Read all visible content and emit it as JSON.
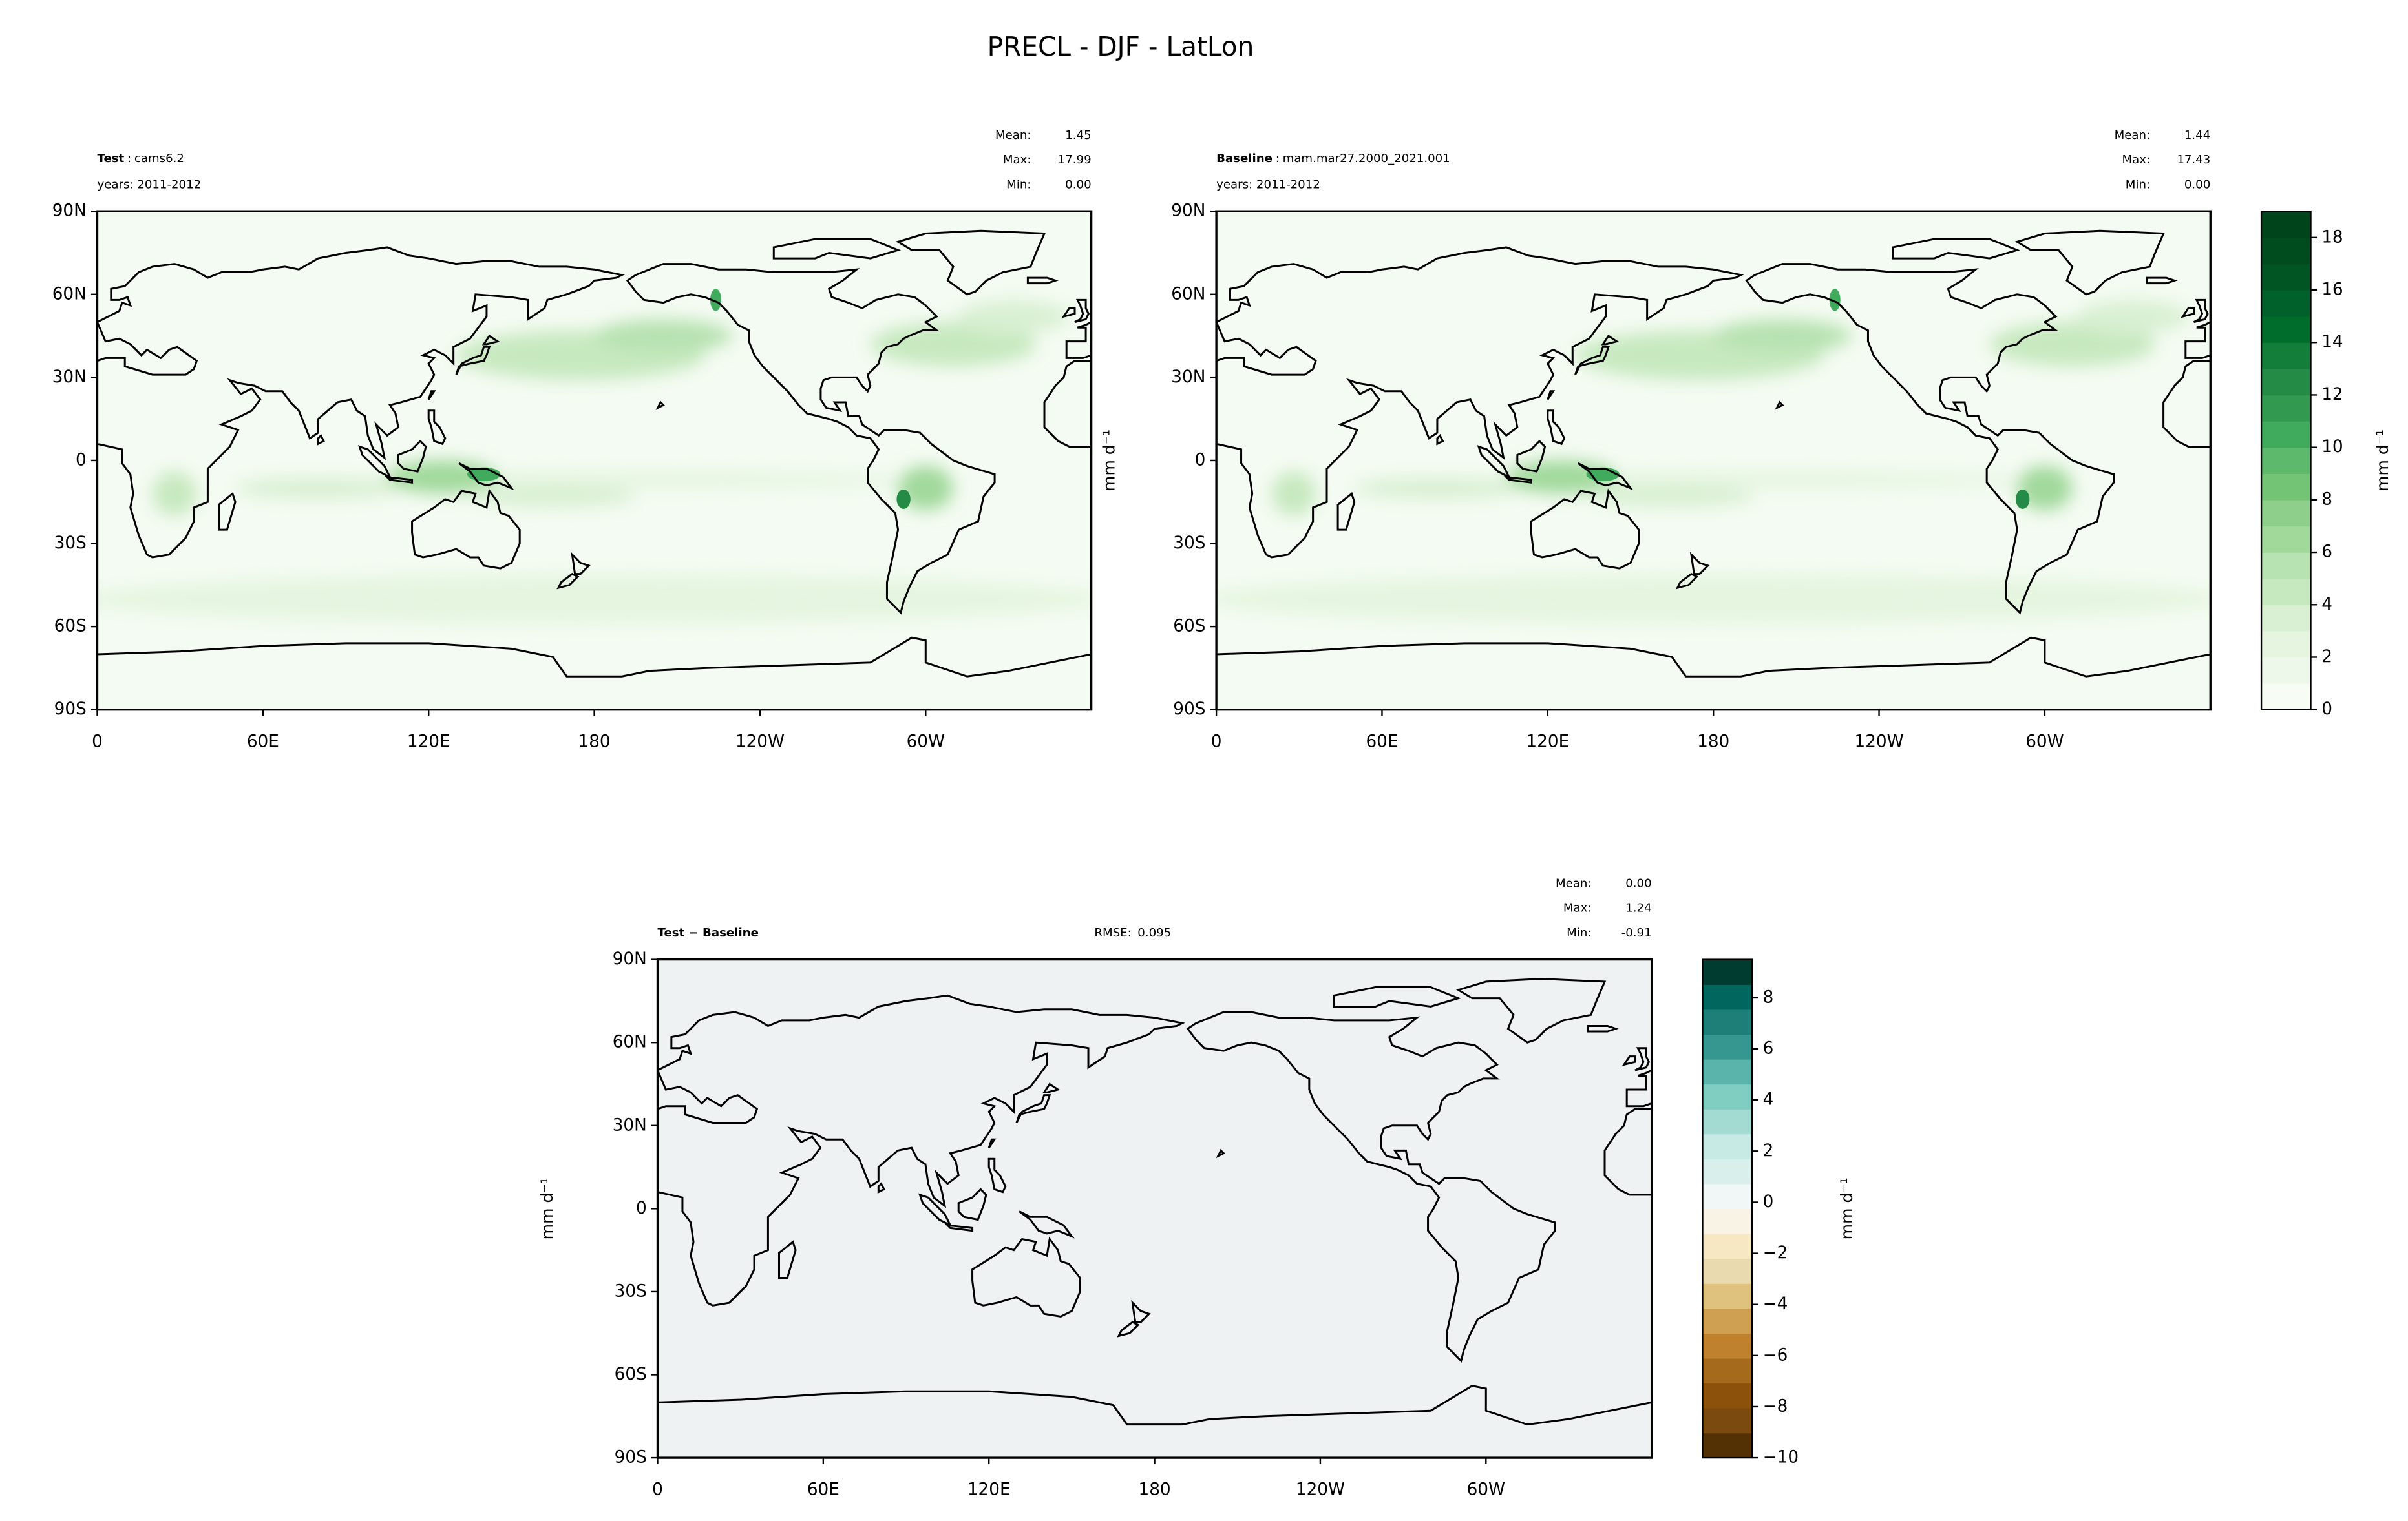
{
  "title": "PRECL - DJF - LatLon",
  "chart_data": [
    {
      "type": "contour",
      "name": "Test",
      "name_separator": ":",
      "case": "cams6.2",
      "years": "years: 2011-2012",
      "stats": {
        "labels": [
          "Mean:",
          "Max:",
          "Min:"
        ],
        "values": [
          1.45,
          17.99,
          0
        ],
        "value_labels": [
          "1.45",
          "17.99",
          "0.00"
        ]
      },
      "xlim": [
        0,
        360
      ],
      "ylim": [
        -90,
        90
      ],
      "xticks": [
        0,
        {
          "value": 60,
          "label": "60E"
        },
        {
          "value": 120,
          "label": "120E"
        },
        180,
        {
          "value": 240,
          "label": "120W"
        },
        {
          "value": 300,
          "label": "60W"
        }
      ],
      "yticks": [
        {
          "value": -90,
          "label": "90S"
        },
        {
          "value": -60,
          "label": "60S"
        },
        {
          "value": -30,
          "label": "30S"
        },
        0,
        {
          "value": 30,
          "label": "30N"
        },
        {
          "value": 60,
          "label": "60N"
        },
        {
          "value": 90,
          "label": "90N"
        }
      ]
    },
    {
      "type": "contour",
      "name": "Baseline",
      "name_separator": ":",
      "case": "mam.mar27.2000_2021.001",
      "years": "years: 2011-2012",
      "stats": {
        "labels": [
          "Mean:",
          "Max:",
          "Min:"
        ],
        "values": [
          1.44,
          17.43,
          0
        ],
        "value_labels": [
          "1.44",
          "17.43",
          "0.00"
        ]
      },
      "ylabel": "mm d⁻¹",
      "xlim": [
        0,
        360
      ],
      "ylim": [
        -90,
        90
      ],
      "xticks": [
        0,
        {
          "value": 60,
          "label": "60E"
        },
        {
          "value": 120,
          "label": "120E"
        },
        180,
        {
          "value": 240,
          "label": "120W"
        },
        {
          "value": 300,
          "label": "60W"
        }
      ],
      "yticks": [
        {
          "value": -90,
          "label": "90S"
        },
        {
          "value": -60,
          "label": "60S"
        },
        {
          "value": -30,
          "label": "30S"
        },
        0,
        {
          "value": 30,
          "label": "30N"
        },
        {
          "value": 60,
          "label": "60N"
        },
        {
          "value": 90,
          "label": "90N"
        }
      ],
      "colorbar": {
        "label": "mm d⁻¹",
        "lim": [
          0,
          19
        ],
        "ticks": [
          0,
          2,
          4,
          6,
          8,
          10,
          12,
          14,
          16,
          18
        ],
        "colors": [
          "#f7fcf5",
          "#eef8ea",
          "#e5f5e0",
          "#d9f0d3",
          "#c7e9c0",
          "#b7e2b1",
          "#a1d99b",
          "#8ed08b",
          "#74c476",
          "#5db96b",
          "#41ab5d",
          "#319a50",
          "#238b45",
          "#137e3a",
          "#006d2c",
          "#00612a",
          "#005522",
          "#004c1f",
          "#00441b"
        ]
      }
    },
    {
      "type": "contour",
      "name": "Test − Baseline",
      "rmse_label": "RMSE:",
      "rmse": 0.095,
      "stats": {
        "labels": [
          "Mean:",
          "Max:",
          "Min:"
        ],
        "values": [
          0,
          1.24,
          -0.91
        ],
        "value_labels": [
          "0.00",
          "1.24",
          "-0.91"
        ]
      },
      "ylabel": "mm d⁻¹",
      "xlim": [
        0,
        360
      ],
      "ylim": [
        -90,
        90
      ],
      "xticks": [
        0,
        {
          "value": 60,
          "label": "60E"
        },
        {
          "value": 120,
          "label": "120E"
        },
        180,
        {
          "value": 240,
          "label": "120W"
        },
        {
          "value": 300,
          "label": "60W"
        }
      ],
      "yticks": [
        {
          "value": -90,
          "label": "90S"
        },
        {
          "value": -60,
          "label": "60S"
        },
        {
          "value": -30,
          "label": "30S"
        },
        0,
        {
          "value": 30,
          "label": "30N"
        },
        {
          "value": 60,
          "label": "60N"
        },
        {
          "value": 90,
          "label": "90N"
        }
      ],
      "colorbar": {
        "label": "mm d⁻¹",
        "lim": [
          -10,
          9.5
        ],
        "ticks": [
          {
            "value": -10,
            "label": "−10"
          },
          {
            "value": -8,
            "label": "−8"
          },
          {
            "value": -6,
            "label": "−6"
          },
          {
            "value": -4,
            "label": "−4"
          },
          {
            "value": -2,
            "label": "−2"
          },
          0,
          2,
          4,
          6,
          8
        ],
        "colors": [
          "#543005",
          "#7a4a0f",
          "#8c510a",
          "#a66a1c",
          "#bf812d",
          "#cfa052",
          "#dfc27d",
          "#eadab0",
          "#f6e8c3",
          "#f9f3e6",
          "#f0f7f6",
          "#d9efec",
          "#c7eae5",
          "#a3dbd3",
          "#80cdc1",
          "#5ab4ab",
          "#35978f",
          "#1d7f77",
          "#01665e",
          "#003c30"
        ]
      }
    }
  ]
}
